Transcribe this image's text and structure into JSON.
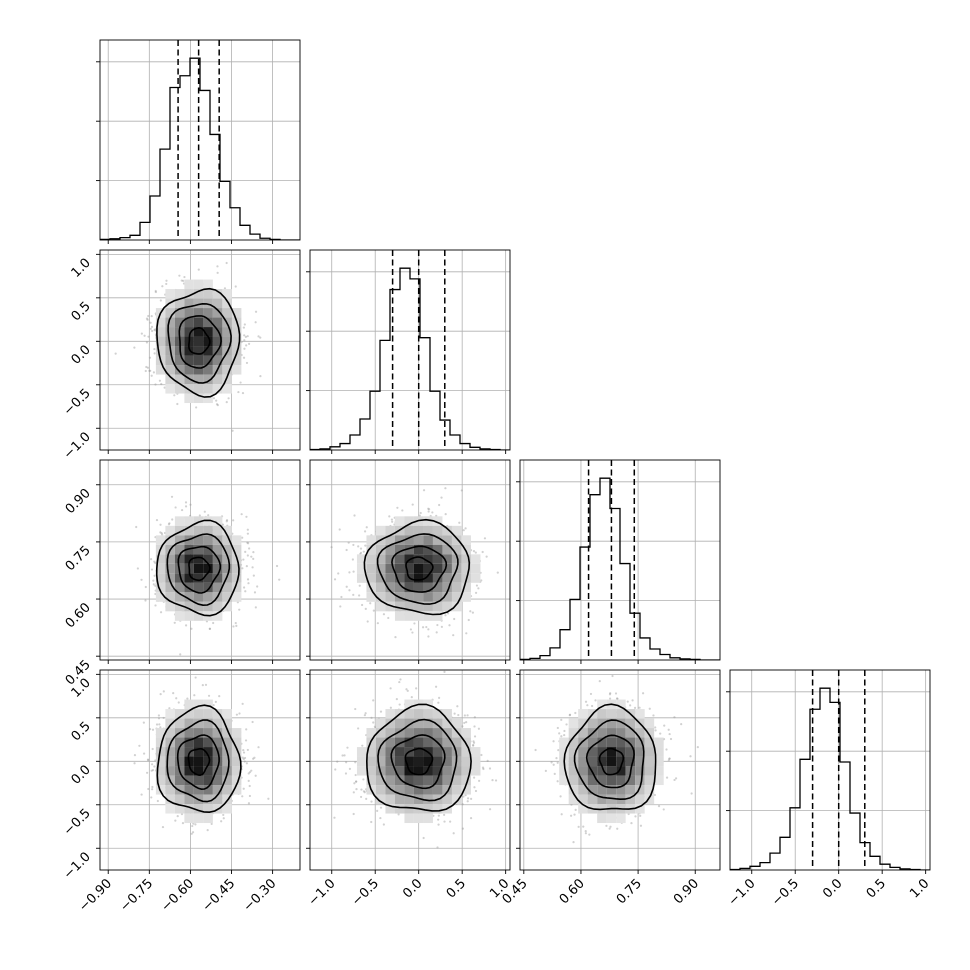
{
  "chart_data": {
    "type": "corner",
    "description_free": true,
    "grid": true,
    "quantiles": [
      0.16,
      0.5,
      0.84
    ],
    "parameters": [
      {
        "range": [
          -0.93,
          -0.2
        ],
        "ticks": [
          -0.9,
          -0.75,
          -0.6,
          -0.45,
          -0.3
        ],
        "tick_labels": [
          "−0.90",
          "−0.75",
          "−0.60",
          "−0.45",
          "−0.30"
        ],
        "mean": -0.57,
        "sd": 0.075,
        "quantile_values": [
          -0.645,
          -0.57,
          -0.495
        ],
        "hist_edges_range": [
          -0.93,
          -0.2
        ],
        "hist_counts": [
          1,
          2,
          4,
          8,
          30,
          75,
          155,
          260,
          280,
          310,
          255,
          180,
          100,
          55,
          25,
          10,
          3,
          1,
          0,
          0
        ]
      },
      {
        "range": [
          -1.25,
          1.05
        ],
        "ticks": [
          -1.0,
          -0.5,
          0.0,
          0.5,
          1.0
        ],
        "tick_labels": [
          "−1.0",
          "−0.5",
          "0.0",
          "0.5",
          "1.0"
        ],
        "mean": 0.0,
        "sd": 0.3,
        "quantile_values": [
          -0.3,
          0.0,
          0.3
        ],
        "hist_edges_range": [
          -1.25,
          1.05
        ],
        "hist_counts": [
          1,
          2,
          6,
          12,
          28,
          58,
          110,
          205,
          300,
          340,
          320,
          210,
          110,
          56,
          28,
          12,
          5,
          2,
          1,
          0
        ]
      },
      {
        "range": [
          0.44,
          0.965
        ],
        "ticks": [
          0.45,
          0.6,
          0.75,
          0.9
        ],
        "tick_labels": [
          "0.45",
          "0.60",
          "0.75",
          "0.90"
        ],
        "mean": 0.68,
        "sd": 0.06,
        "quantile_values": [
          0.62,
          0.68,
          0.74
        ],
        "hist_edges_range": [
          0.44,
          0.965
        ],
        "hist_counts": [
          1,
          3,
          8,
          22,
          55,
          110,
          205,
          300,
          330,
          275,
          175,
          85,
          40,
          20,
          10,
          4,
          2,
          1,
          0,
          0
        ]
      },
      {
        "range": [
          -1.25,
          1.05
        ],
        "ticks": [
          -1.0,
          -0.5,
          0.0,
          0.5,
          1.0
        ],
        "tick_labels": [
          "−1.0",
          "−0.5",
          "0.0",
          "0.5",
          "1.0"
        ],
        "mean": 0.0,
        "sd": 0.3,
        "quantile_values": [
          -0.3,
          0.0,
          0.3
        ],
        "hist_edges_range": [
          -1.25,
          1.05
        ],
        "hist_counts": [
          1,
          3,
          7,
          14,
          32,
          62,
          118,
          210,
          305,
          345,
          318,
          205,
          108,
          52,
          26,
          11,
          5,
          2,
          1,
          0
        ]
      }
    ],
    "contour_levels": [
      0.5,
      1.0,
      1.5,
      2.0
    ],
    "colors": {
      "line": "#000000",
      "grid": "#b0b0b0",
      "density_dark": "#111111",
      "points": "#9a9a9a"
    }
  }
}
